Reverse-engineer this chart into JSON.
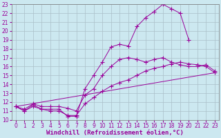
{
  "background_color": "#cce8f0",
  "line_color": "#990099",
  "grid_color": "#aabfc8",
  "xlabel": "Windchill (Refroidissement éolien,°C)",
  "xlabel_fontsize": 6.5,
  "tick_fontsize": 5.5,
  "xlim": [
    -0.5,
    23.5
  ],
  "ylim": [
    10,
    23
  ],
  "xticks": [
    0,
    1,
    2,
    3,
    4,
    5,
    6,
    7,
    8,
    9,
    10,
    11,
    12,
    13,
    14,
    15,
    16,
    17,
    18,
    19,
    20,
    21,
    22,
    23
  ],
  "yticks": [
    10,
    11,
    12,
    13,
    14,
    15,
    16,
    17,
    18,
    19,
    20,
    21,
    22,
    23
  ],
  "line1_x": [
    0,
    1,
    2,
    3,
    4,
    5,
    6,
    7,
    8,
    9,
    10,
    11,
    12,
    13,
    14,
    15,
    16,
    17,
    18,
    19,
    20
  ],
  "line1_y": [
    11.5,
    11.0,
    11.7,
    11.2,
    11.2,
    11.2,
    10.4,
    10.4,
    13.5,
    15.0,
    16.5,
    18.2,
    18.5,
    18.3,
    20.5,
    21.5,
    22.2,
    23.0,
    22.5,
    22.0,
    19.0
  ],
  "line2_x": [
    0,
    1,
    2,
    3,
    4,
    5,
    6,
    7,
    8,
    9,
    10,
    11,
    12,
    13,
    14,
    15,
    16,
    17,
    18,
    19,
    20,
    21,
    22,
    23
  ],
  "line2_y": [
    11.5,
    11.2,
    11.8,
    11.5,
    11.5,
    11.5,
    11.3,
    11.0,
    12.8,
    13.5,
    15.0,
    16.0,
    16.8,
    17.0,
    16.8,
    16.5,
    16.8,
    17.0,
    16.5,
    16.2,
    16.0,
    16.0,
    16.2,
    15.5
  ],
  "line3_x": [
    0,
    1,
    2,
    3,
    4,
    5,
    6,
    7,
    8,
    9,
    10,
    11,
    12,
    13,
    14,
    15,
    16,
    17,
    18,
    19,
    20,
    21,
    22,
    23
  ],
  "line3_y": [
    11.5,
    11.0,
    11.5,
    11.2,
    11.0,
    11.0,
    10.5,
    10.5,
    11.8,
    12.5,
    13.2,
    13.8,
    14.2,
    14.5,
    15.0,
    15.5,
    15.8,
    16.0,
    16.3,
    16.5,
    16.3,
    16.2,
    16.0,
    15.3
  ],
  "line4_x": [
    0,
    23
  ],
  "line4_y": [
    11.5,
    15.3
  ]
}
